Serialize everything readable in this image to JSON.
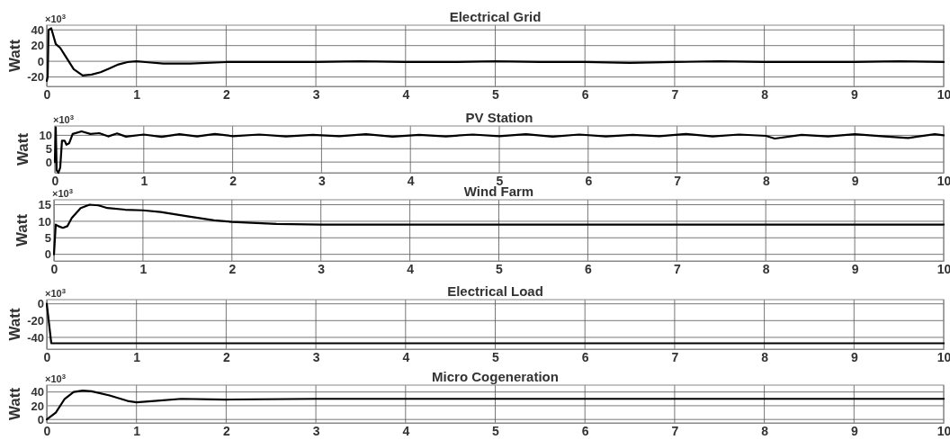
{
  "chart_data": [
    {
      "type": "line",
      "title": "Electrical Grid",
      "ylabel": "Watt",
      "annotations": [
        "×10$^{3}$"
      ],
      "xlim": [
        0,
        10
      ],
      "xticks": [
        0,
        1,
        2,
        3,
        4,
        5,
        6,
        7,
        8,
        9,
        10
      ],
      "ylim": [
        -32,
        46
      ],
      "yticks": [
        -20,
        0,
        20,
        40
      ],
      "grid": true,
      "line_style": "solid",
      "series": [
        {
          "color": "#000000",
          "x": [
            0,
            0.01,
            0.02,
            0.05,
            0.1,
            0.15,
            0.2,
            0.3,
            0.4,
            0.5,
            0.6,
            0.7,
            0.8,
            0.9,
            1.0,
            1.1,
            1.3,
            1.6,
            2.0,
            2.5,
            3,
            3.5,
            4,
            4.5,
            5,
            5.5,
            6,
            6.5,
            7,
            7.5,
            8,
            8.5,
            9,
            9.5,
            10
          ],
          "values": [
            -25,
            -20,
            40,
            42,
            22,
            17,
            8,
            -10,
            -18,
            -17,
            -14,
            -9,
            -4,
            -1,
            0,
            -1,
            -3,
            -3,
            -1,
            -1,
            -1,
            0,
            -1,
            -1,
            0,
            -1,
            -1,
            -2,
            -1,
            0,
            -1,
            -1,
            -1,
            0,
            -1
          ]
        }
      ]
    },
    {
      "type": "line",
      "title": "PV Station",
      "ylabel": "Watt",
      "annotations": [
        "×10$^{3}$"
      ],
      "xlim": [
        0,
        10
      ],
      "xticks": [
        0,
        1,
        2,
        3,
        4,
        5,
        6,
        7,
        8,
        9,
        10
      ],
      "ylim": [
        -4,
        13.5
      ],
      "yticks": [
        0,
        5,
        10
      ],
      "grid": true,
      "line_style": "solid",
      "series": [
        {
          "color": "#000000",
          "x": [
            0,
            0.01,
            0.02,
            0.04,
            0.06,
            0.08,
            0.11,
            0.13,
            0.16,
            0.2,
            0.3,
            0.4,
            0.5,
            0.6,
            0.7,
            0.8,
            1.0,
            1.2,
            1.4,
            1.6,
            1.8,
            2.0,
            2.3,
            2.6,
            2.9,
            3.2,
            3.5,
            3.8,
            4.1,
            4.4,
            4.7,
            5.0,
            5.3,
            5.6,
            5.9,
            6.2,
            6.5,
            6.8,
            7.1,
            7.4,
            7.7,
            8.0,
            8.1,
            8.4,
            8.7,
            9.0,
            9.3,
            9.6,
            9.9,
            10
          ],
          "values": [
            0,
            13,
            -3,
            -4,
            -2,
            8,
            8,
            6.5,
            7,
            10.5,
            11.5,
            10.5,
            10.8,
            9.6,
            10.7,
            9.5,
            10.3,
            9.4,
            10.4,
            9.6,
            10.5,
            9.7,
            10.3,
            9.6,
            10.2,
            9.7,
            10.4,
            9.5,
            10.2,
            9.6,
            10.3,
            9.7,
            10.4,
            9.5,
            10.3,
            9.6,
            10.2,
            9.7,
            10.5,
            9.6,
            10.3,
            9.8,
            8.8,
            10.2,
            9.6,
            10.4,
            9.7,
            9.0,
            10.4,
            10
          ]
        }
      ]
    },
    {
      "type": "line",
      "title": "Wind Farm",
      "ylabel": "Watt",
      "annotations": [
        "×10$^{3}$"
      ],
      "xlim": [
        0,
        10
      ],
      "xticks": [
        0,
        1,
        2,
        3,
        4,
        5,
        6,
        7,
        8,
        9,
        10
      ],
      "ylim": [
        -2,
        16.5
      ],
      "yticks": [
        0,
        5,
        10,
        15
      ],
      "grid": true,
      "line_style": "solid",
      "series": [
        {
          "color": "#000000",
          "x": [
            0,
            0.02,
            0.05,
            0.1,
            0.15,
            0.2,
            0.3,
            0.4,
            0.5,
            0.6,
            0.8,
            1.0,
            1.2,
            1.5,
            1.8,
            2.0,
            2.5,
            3,
            10
          ],
          "values": [
            0,
            9,
            8.5,
            8,
            8.5,
            11,
            14,
            15,
            14.8,
            14,
            13.5,
            13.3,
            12.8,
            11.5,
            10.3,
            9.8,
            9.2,
            9,
            9
          ]
        }
      ]
    },
    {
      "type": "line",
      "title": "Electrical Load",
      "ylabel": "Watt",
      "annotations": [
        "×10$^{3}$"
      ],
      "xlim": [
        0,
        10
      ],
      "xticks": [
        0,
        1,
        2,
        3,
        4,
        5,
        6,
        7,
        8,
        9,
        10
      ],
      "ylim": [
        -54,
        5
      ],
      "yticks": [
        -40,
        -20,
        0
      ],
      "grid": true,
      "line_style": "solid",
      "series": [
        {
          "color": "#000000",
          "x": [
            0,
            0.05,
            10
          ],
          "values": [
            0,
            -47,
            -47
          ]
        }
      ]
    },
    {
      "type": "line",
      "title": "Micro Cogeneration",
      "ylabel": "Watt",
      "annotations": [
        "×10$^{3}$"
      ],
      "xlim": [
        0,
        10
      ],
      "xticks": [
        0,
        1,
        2,
        3,
        4,
        5,
        6,
        7,
        8,
        9,
        10
      ],
      "ylim": [
        -5,
        50
      ],
      "yticks": [
        0,
        20,
        40
      ],
      "grid": true,
      "line_style": "solid",
      "series": [
        {
          "color": "#000000",
          "x": [
            0,
            0.1,
            0.2,
            0.3,
            0.4,
            0.5,
            0.7,
            0.9,
            1.0,
            1.2,
            1.5,
            2,
            3,
            10
          ],
          "values": [
            0,
            10,
            30,
            40,
            42,
            41,
            35,
            27,
            25,
            27,
            30,
            29,
            30,
            30
          ]
        }
      ]
    }
  ]
}
